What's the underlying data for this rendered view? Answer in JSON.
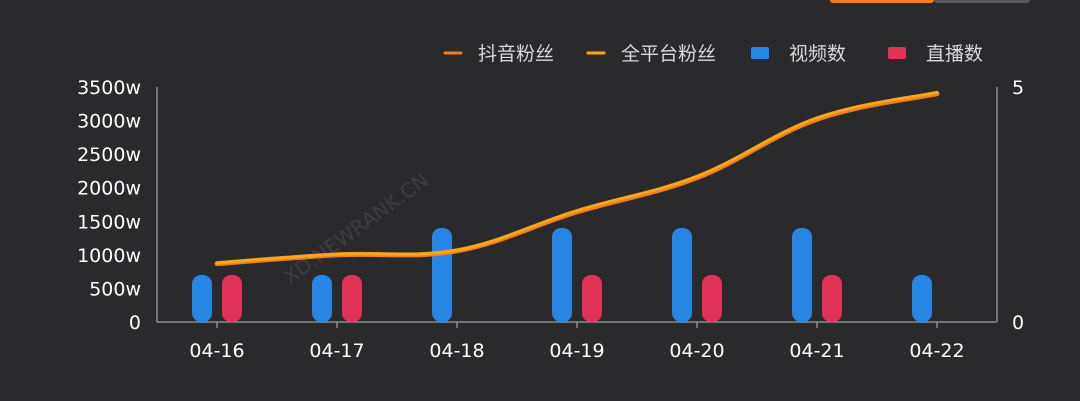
{
  "chart_data": {
    "type": "bar",
    "categories": [
      "04-16",
      "04-17",
      "04-18",
      "04-19",
      "04-20",
      "04-21",
      "04-22"
    ],
    "legend": [
      {
        "name": "抖音粉丝",
        "shape": "line",
        "color": "#f07d1e"
      },
      {
        "name": "全平台粉丝",
        "shape": "line",
        "color": "#f5a81c"
      },
      {
        "name": "视频数",
        "shape": "bar",
        "color": "#2785e6"
      },
      {
        "name": "直播数",
        "shape": "bar",
        "color": "#e3325a"
      }
    ],
    "series": [
      {
        "name": "抖音粉丝",
        "type": "line",
        "axis": "left",
        "values": [
          870,
          1000,
          1060,
          1640,
          2150,
          3020,
          3400
        ]
      },
      {
        "name": "全平台粉丝",
        "type": "line",
        "axis": "left",
        "values": [
          880,
          1010,
          1070,
          1660,
          2170,
          3040,
          3420
        ]
      },
      {
        "name": "视频数",
        "type": "bar",
        "axis": "right",
        "values": [
          1,
          1,
          2,
          2,
          2,
          2,
          1
        ]
      },
      {
        "name": "直播数",
        "type": "bar",
        "axis": "right",
        "values": [
          1,
          1,
          0,
          1,
          1,
          1,
          0
        ]
      }
    ],
    "y_left": {
      "ylim": [
        0,
        3500
      ],
      "ticks": [
        "0",
        "500w",
        "1000w",
        "1500w",
        "2000w",
        "2500w",
        "3000w",
        "3500w"
      ]
    },
    "y_right": {
      "ylim": [
        0,
        5
      ],
      "ticks": [
        "0",
        "5"
      ]
    },
    "legend_position": "top-right",
    "grid": false
  },
  "watermark": "XD.NEWRANK.CN"
}
